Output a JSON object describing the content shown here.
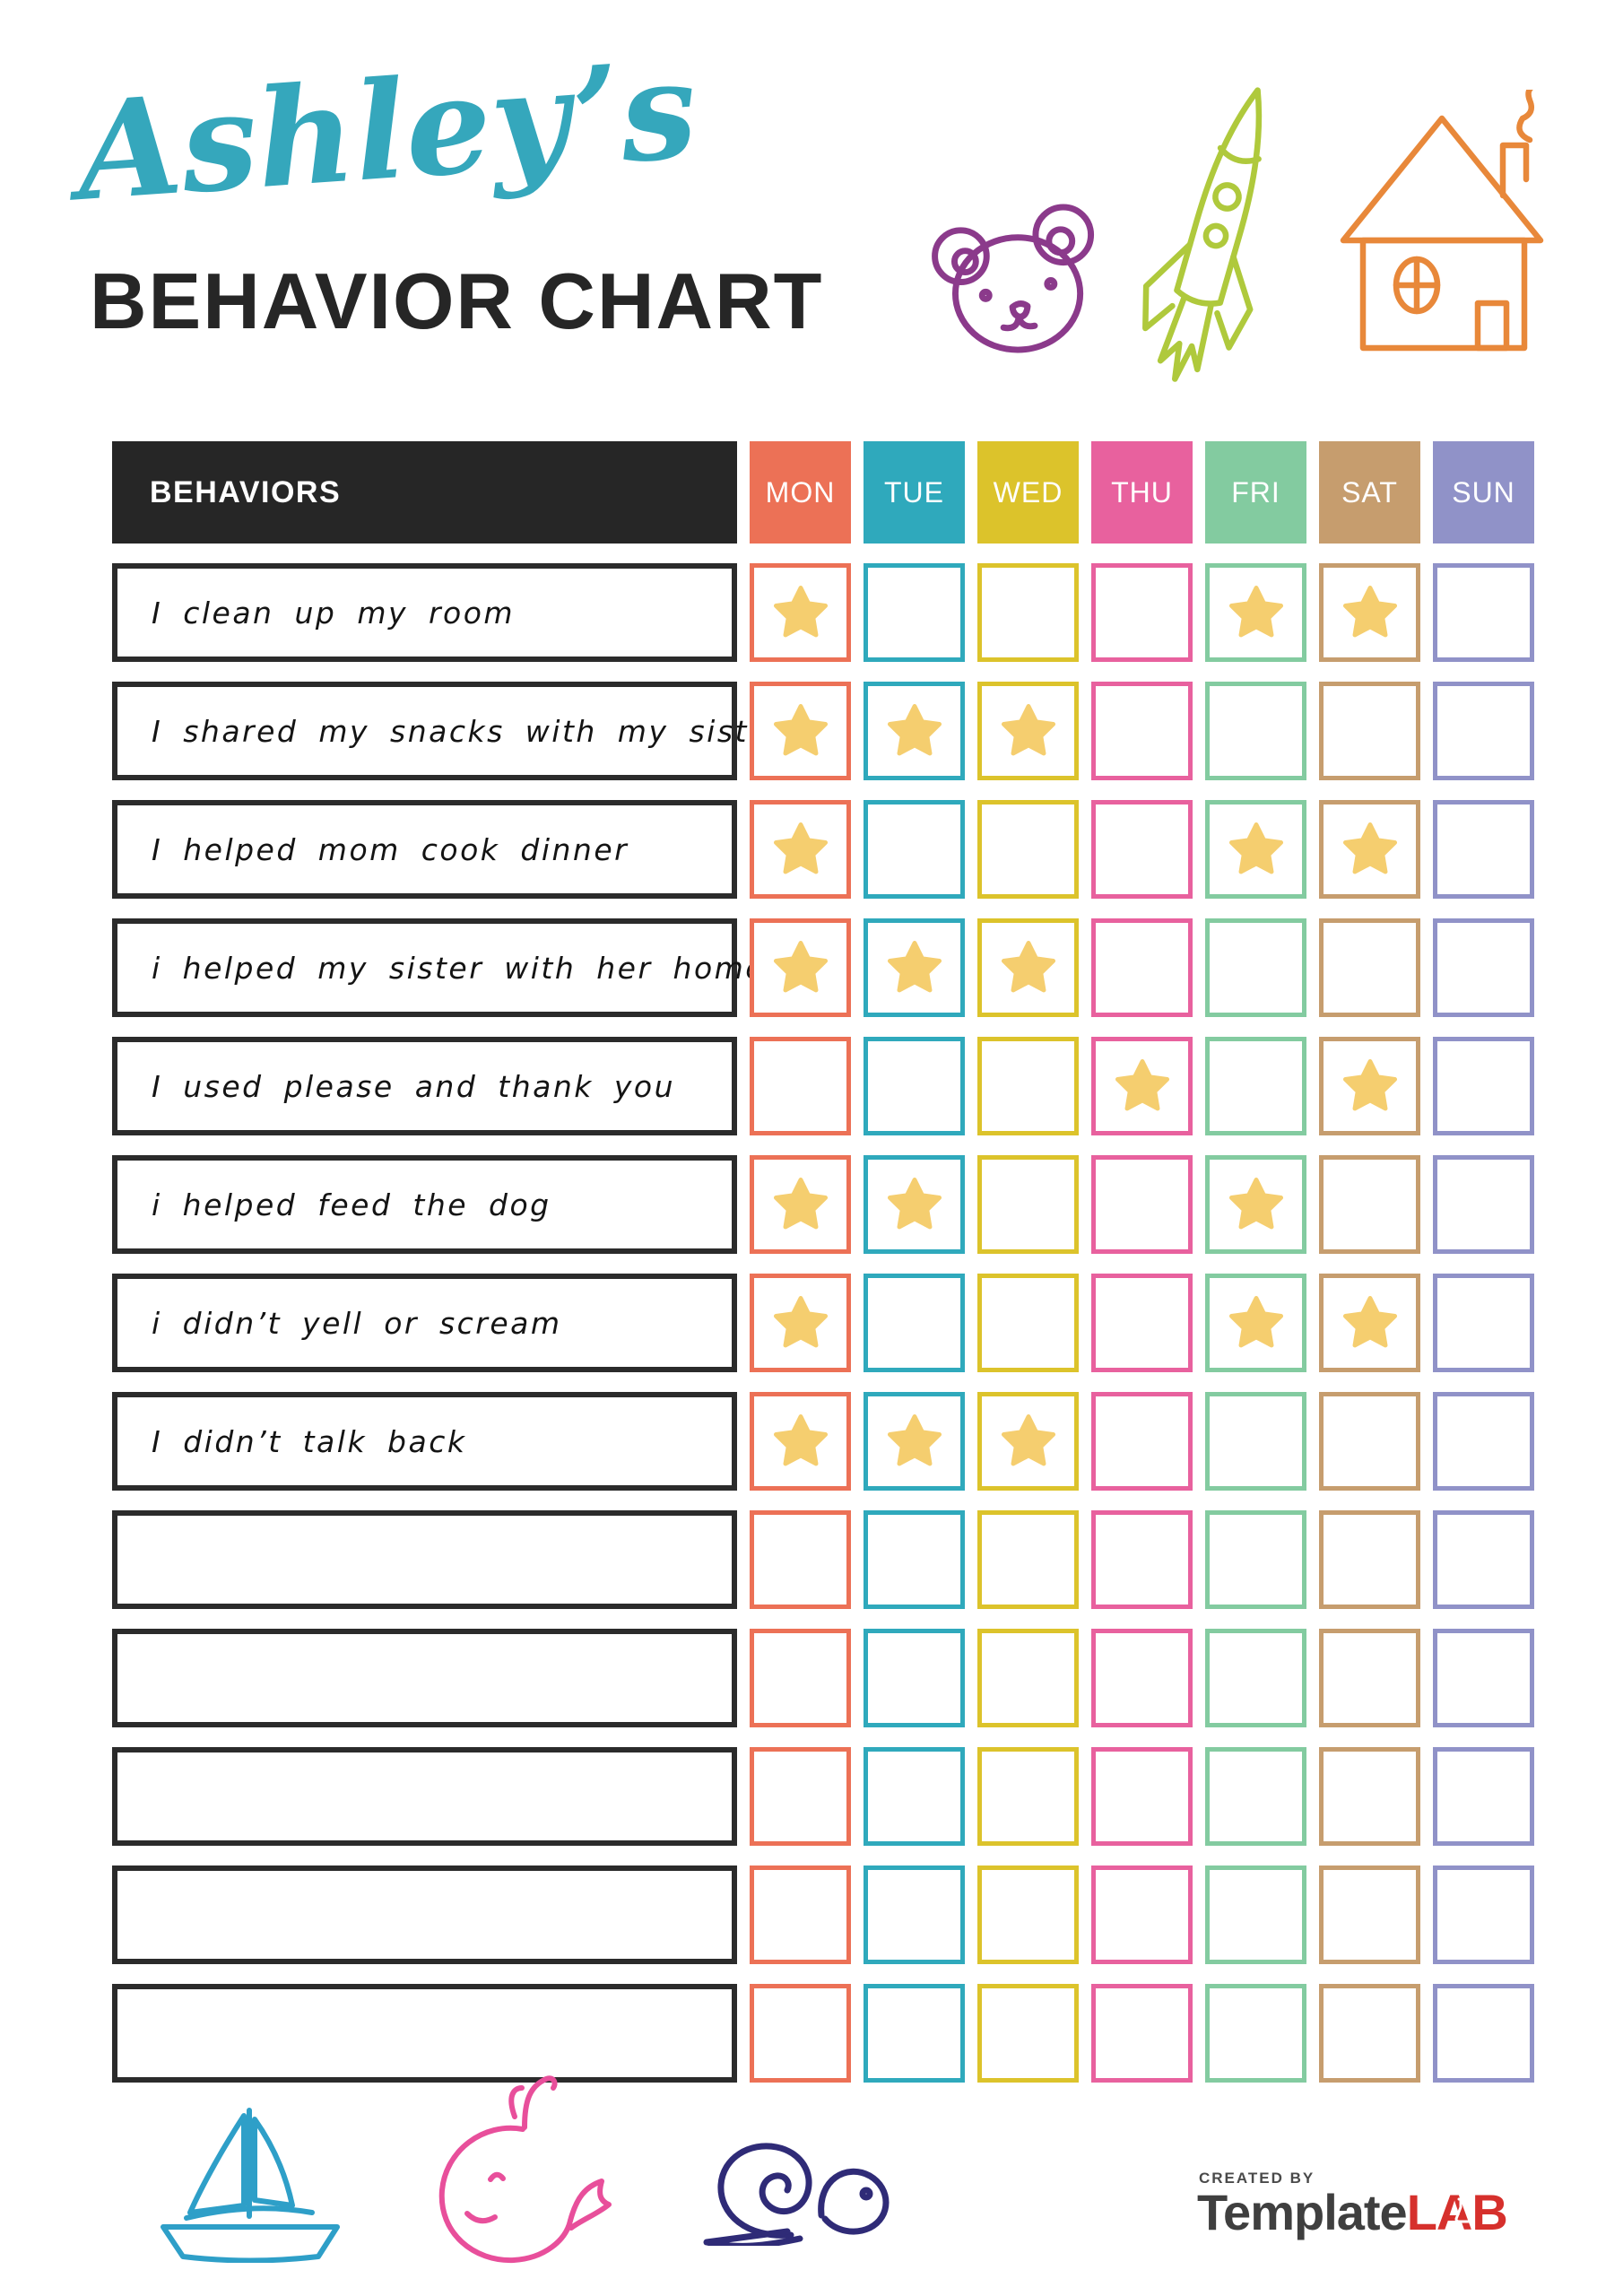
{
  "header": {
    "owner_name": "Ashley’s",
    "title": "BEHAVIOR CHART"
  },
  "colors": {
    "accent_script": "#35A7BC",
    "title_text": "#262626",
    "behaviors_header_bg": "#262626",
    "row_border": "#2B2B2B",
    "star": "#F5CE6F"
  },
  "doodles": {
    "top": [
      "bear",
      "rocket",
      "house"
    ],
    "bottom": [
      "sailboat",
      "whale",
      "snail"
    ],
    "colors": {
      "bear": "#8B3A8B",
      "rocket": "#AFC93C",
      "house": "#E8883A",
      "sailboat": "#2E9FC8",
      "whale": "#E84F9B",
      "snail": "#2F2B77"
    }
  },
  "table": {
    "behaviors_header": "BEHAVIORS",
    "days": [
      {
        "label": "MON",
        "color": "#EC7156"
      },
      {
        "label": "TUE",
        "color": "#2FA9BC"
      },
      {
        "label": "WED",
        "color": "#DCC32B"
      },
      {
        "label": "THU",
        "color": "#E8619E"
      },
      {
        "label": "FRI",
        "color": "#83CBA0"
      },
      {
        "label": "SAT",
        "color": "#C69D6E"
      },
      {
        "label": "SUN",
        "color": "#9092C8"
      }
    ],
    "rows": [
      {
        "behavior": "I clean up my room",
        "stars": [
          1,
          0,
          0,
          0,
          1,
          1,
          0
        ]
      },
      {
        "behavior": "I shared my snacks with my sister",
        "stars": [
          1,
          1,
          1,
          0,
          0,
          0,
          0
        ]
      },
      {
        "behavior": "I helped mom cook dinner",
        "stars": [
          1,
          0,
          0,
          0,
          1,
          1,
          0
        ]
      },
      {
        "behavior": "i helped my sister with her homework",
        "stars": [
          1,
          1,
          1,
          0,
          0,
          0,
          0
        ]
      },
      {
        "behavior": "I used please and thank you",
        "stars": [
          0,
          0,
          0,
          1,
          0,
          1,
          0
        ]
      },
      {
        "behavior": "i helped feed the dog",
        "stars": [
          1,
          1,
          0,
          0,
          1,
          0,
          0
        ]
      },
      {
        "behavior": "i didn’t yell or scream",
        "stars": [
          1,
          0,
          0,
          0,
          1,
          1,
          0
        ]
      },
      {
        "behavior": "I didn’t talk back",
        "stars": [
          1,
          1,
          1,
          0,
          0,
          0,
          0
        ]
      },
      {
        "behavior": "",
        "stars": [
          0,
          0,
          0,
          0,
          0,
          0,
          0
        ]
      },
      {
        "behavior": "",
        "stars": [
          0,
          0,
          0,
          0,
          0,
          0,
          0
        ]
      },
      {
        "behavior": "",
        "stars": [
          0,
          0,
          0,
          0,
          0,
          0,
          0
        ]
      },
      {
        "behavior": "",
        "stars": [
          0,
          0,
          0,
          0,
          0,
          0,
          0
        ]
      },
      {
        "behavior": "",
        "stars": [
          0,
          0,
          0,
          0,
          0,
          0,
          0
        ]
      }
    ]
  },
  "footer": {
    "created_by": "CREATED BY",
    "created_by_color": "#4A4A4A",
    "brand_name_1": "Template",
    "brand_name_1_color": "#3F3F3F",
    "brand_name_2": "LAB",
    "brand_name_2_color": "#D6302C"
  }
}
